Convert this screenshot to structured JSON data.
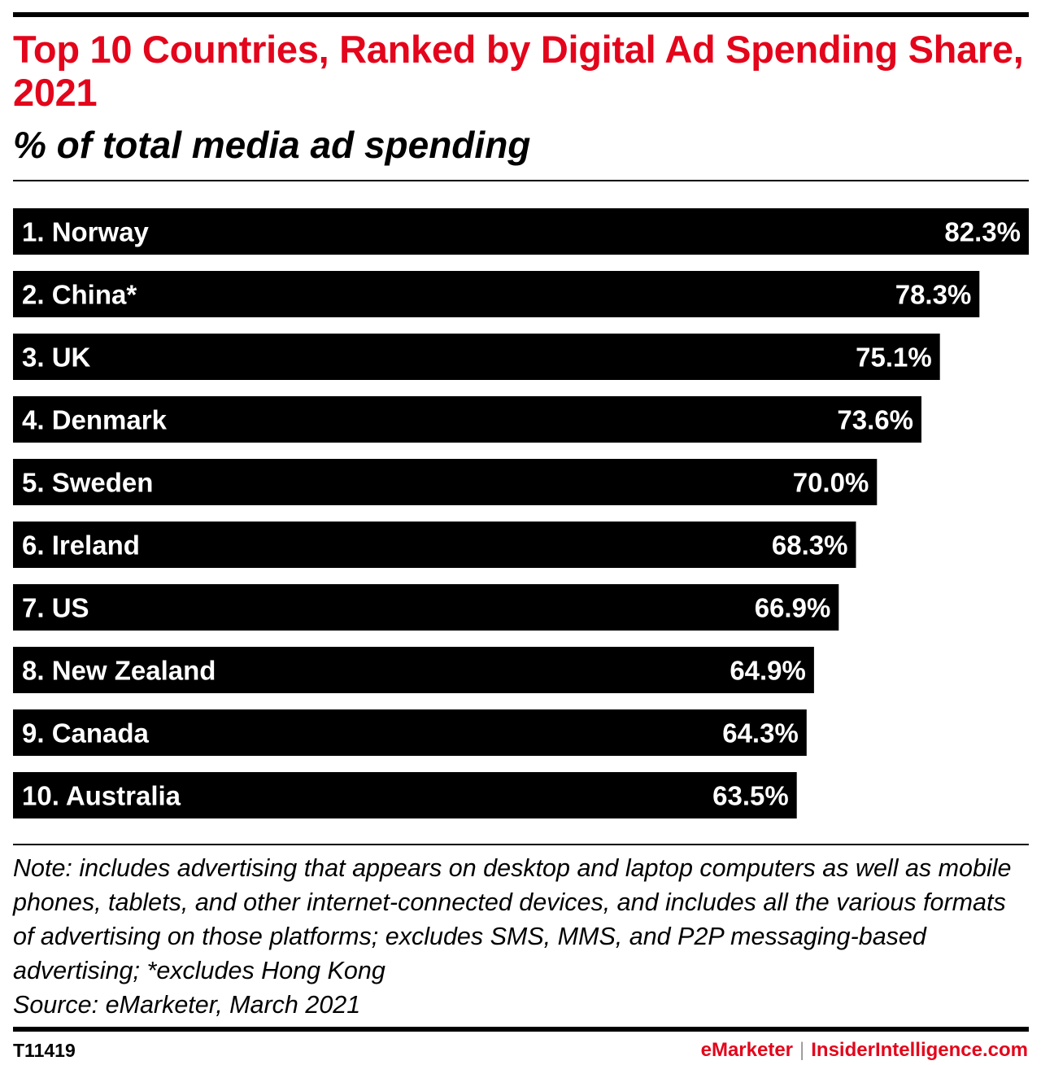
{
  "chart_data": {
    "type": "bar",
    "orientation": "horizontal",
    "title": "Top 10 Countries, Ranked by Digital Ad Spending Share, 2021",
    "subtitle": "% of total media ad spending",
    "categories": [
      "1. Norway",
      "2. China*",
      "3. UK",
      "4. Denmark",
      "5. Sweden",
      "6. Ireland",
      "7. US",
      "8. New Zealand",
      "9. Canada",
      "10. Australia"
    ],
    "values": [
      82.3,
      78.3,
      75.1,
      73.6,
      70.0,
      68.3,
      66.9,
      64.9,
      64.3,
      63.5
    ],
    "value_labels": [
      "82.3%",
      "78.3%",
      "75.1%",
      "73.6%",
      "70.0%",
      "68.3%",
      "66.9%",
      "64.9%",
      "64.3%",
      "63.5%"
    ],
    "bar_color": "#000000",
    "label_color": "#ffffff",
    "grid": false,
    "legend": "none"
  },
  "note": {
    "text": "Note: includes advertising that appears on desktop and laptop computers as well as mobile phones, tablets, and other internet-connected devices, and includes all the various formats of advertising on those platforms; excludes SMS, MMS, and P2P messaging-based advertising; *excludes Hong Kong",
    "source": "Source: eMarketer, March 2021"
  },
  "footer": {
    "chart_id": "T11419",
    "brand_left": "eMarketer",
    "separator": "|",
    "brand_right": "InsiderIntelligence.com"
  },
  "colors": {
    "title": "#e3051b",
    "brand": "#e3051b"
  }
}
